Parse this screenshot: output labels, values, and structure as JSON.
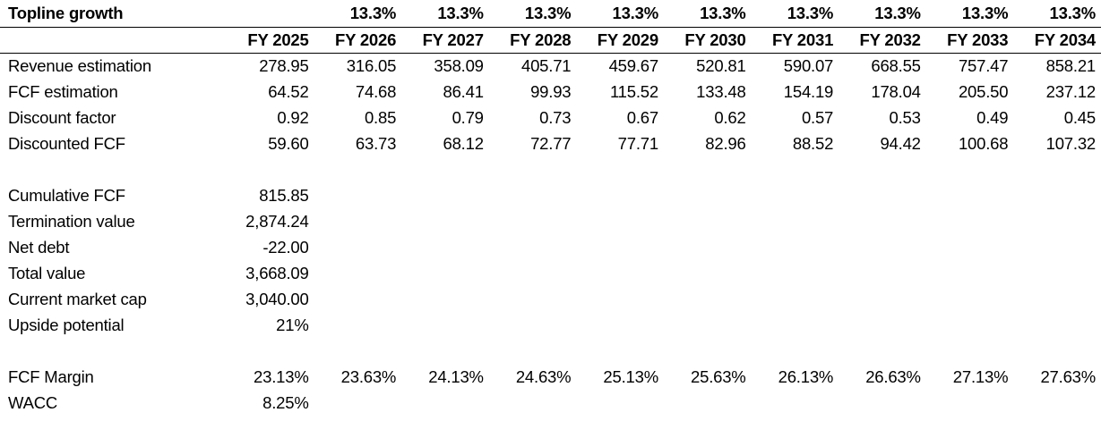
{
  "sheet": {
    "background_color": "#ffffff",
    "text_color": "#000000",
    "rule_color": "#000000"
  },
  "rows": [
    {
      "id": "topline-growth",
      "label": "Topline growth",
      "bold": true,
      "rule": true,
      "tall": true,
      "cells": [
        "",
        "13.3%",
        "13.3%",
        "13.3%",
        "13.3%",
        "13.3%",
        "13.3%",
        "13.3%",
        "13.3%",
        "13.3%"
      ]
    },
    {
      "id": "fiscal-year-header",
      "label": "",
      "bold": true,
      "rule": true,
      "cells": [
        "FY 2025",
        "FY 2026",
        "FY 2027",
        "FY 2028",
        "FY 2029",
        "FY 2030",
        "FY 2031",
        "FY 2032",
        "FY 2033",
        "FY 2034"
      ]
    },
    {
      "id": "revenue-estimation",
      "label": "Revenue estimation",
      "cells": [
        "278.95",
        "316.05",
        "358.09",
        "405.71",
        "459.67",
        "520.81",
        "590.07",
        "668.55",
        "757.47",
        "858.21"
      ]
    },
    {
      "id": "fcf-estimation",
      "label": "FCF estimation",
      "cells": [
        "64.52",
        "74.68",
        "86.41",
        "99.93",
        "115.52",
        "133.48",
        "154.19",
        "178.04",
        "205.50",
        "237.12"
      ]
    },
    {
      "id": "discount-factor",
      "label": "Discount factor",
      "cells": [
        "0.92",
        "0.85",
        "0.79",
        "0.73",
        "0.67",
        "0.62",
        "0.57",
        "0.53",
        "0.49",
        "0.45"
      ]
    },
    {
      "id": "discounted-fcf",
      "label": "Discounted FCF",
      "cells": [
        "59.60",
        "63.73",
        "68.12",
        "72.77",
        "77.71",
        "82.96",
        "88.52",
        "94.42",
        "100.68",
        "107.32"
      ]
    },
    {
      "id": "blank-1",
      "label": "",
      "cells": [
        "",
        "",
        "",
        "",
        "",
        "",
        "",
        "",
        "",
        ""
      ]
    },
    {
      "id": "cumulative-fcf",
      "label": "Cumulative FCF",
      "cells": [
        "815.85",
        "",
        "",
        "",
        "",
        "",
        "",
        "",
        "",
        ""
      ]
    },
    {
      "id": "termination-value",
      "label": "Termination value",
      "cells": [
        "2,874.24",
        "",
        "",
        "",
        "",
        "",
        "",
        "",
        "",
        ""
      ]
    },
    {
      "id": "net-debt",
      "label": "Net debt",
      "cells": [
        "-22.00",
        "",
        "",
        "",
        "",
        "",
        "",
        "",
        "",
        ""
      ]
    },
    {
      "id": "total-value",
      "label": "Total value",
      "cells": [
        "3,668.09",
        "",
        "",
        "",
        "",
        "",
        "",
        "",
        "",
        ""
      ]
    },
    {
      "id": "current-market-cap",
      "label": "Current market cap",
      "cells": [
        "3,040.00",
        "",
        "",
        "",
        "",
        "",
        "",
        "",
        "",
        ""
      ]
    },
    {
      "id": "upside-potential",
      "label": "Upside potential",
      "cells": [
        "21%",
        "",
        "",
        "",
        "",
        "",
        "",
        "",
        "",
        ""
      ]
    },
    {
      "id": "blank-2",
      "label": "",
      "cells": [
        "",
        "",
        "",
        "",
        "",
        "",
        "",
        "",
        "",
        ""
      ]
    },
    {
      "id": "fcf-margin",
      "label": "FCF Margin",
      "cells": [
        "23.13%",
        "23.63%",
        "24.13%",
        "24.63%",
        "25.13%",
        "25.63%",
        "26.13%",
        "26.63%",
        "27.13%",
        "27.63%"
      ]
    },
    {
      "id": "wacc",
      "label": "WACC",
      "cells": [
        "8.25%",
        "",
        "",
        "",
        "",
        "",
        "",
        "",
        "",
        ""
      ]
    }
  ]
}
